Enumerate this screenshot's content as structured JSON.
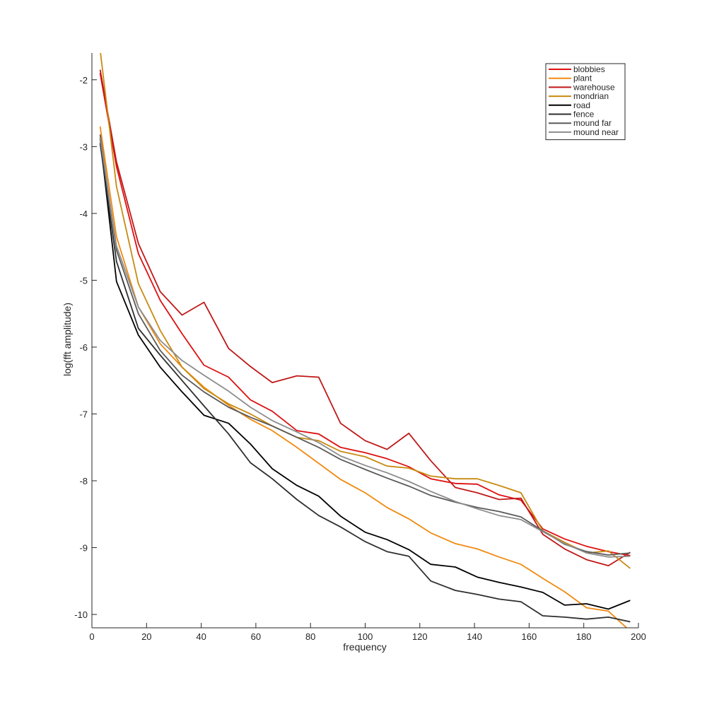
{
  "chart_data": {
    "type": "line",
    "title": "",
    "xlabel": "frequency",
    "ylabel": "log(fft amplitude)",
    "xlim": [
      0,
      200
    ],
    "ylim": [
      -10.2,
      -1.6
    ],
    "xticks": [
      0,
      20,
      40,
      60,
      80,
      100,
      120,
      140,
      160,
      180,
      200
    ],
    "yticks": [
      -10,
      -9,
      -8,
      -7,
      -6,
      -5,
      -4,
      -3,
      -2
    ],
    "grid": false,
    "legend_position": "top-right",
    "x": [
      3,
      9,
      17,
      25,
      33,
      41,
      50,
      58,
      66,
      75,
      83,
      91,
      100,
      108,
      116,
      124,
      133,
      141,
      149,
      157,
      165,
      173,
      181,
      189,
      197
    ],
    "series": [
      {
        "name": "blobbies",
        "color": "#dd1111",
        "values": [
          -1.9,
          -3.3,
          -4.6,
          -5.3,
          -5.8,
          -6.27,
          -6.45,
          -6.79,
          -6.96,
          -7.25,
          -7.3,
          -7.5,
          -7.58,
          -7.67,
          -7.79,
          -7.97,
          -8.04,
          -8.05,
          -8.21,
          -8.29,
          -8.72,
          -8.87,
          -8.98,
          -9.06,
          -9.12
        ]
      },
      {
        "name": "plant",
        "color": "#f08a10",
        "values": [
          -2.7,
          -4.35,
          -5.4,
          -5.95,
          -6.3,
          -6.6,
          -6.87,
          -7.08,
          -7.25,
          -7.5,
          -7.74,
          -7.98,
          -8.18,
          -8.4,
          -8.57,
          -8.78,
          -8.94,
          -9.02,
          -9.14,
          -9.25,
          -9.46,
          -9.66,
          -9.9,
          -9.95,
          -10.25
        ]
      },
      {
        "name": "warehouse",
        "color": "#c01818",
        "values": [
          -1.85,
          -3.23,
          -4.45,
          -5.17,
          -5.52,
          -5.33,
          -6.02,
          -6.29,
          -6.53,
          -6.43,
          -6.45,
          -7.14,
          -7.4,
          -7.53,
          -7.29,
          -7.7,
          -8.1,
          -8.18,
          -8.28,
          -8.26,
          -8.8,
          -9.02,
          -9.18,
          -9.27,
          -9.07
        ]
      },
      {
        "name": "mondrian",
        "color": "#c88a10",
        "values": [
          -1.55,
          -3.6,
          -5.05,
          -5.75,
          -6.3,
          -6.62,
          -6.85,
          -7.0,
          -7.18,
          -7.35,
          -7.4,
          -7.56,
          -7.64,
          -7.78,
          -7.81,
          -7.93,
          -7.97,
          -7.97,
          -8.07,
          -8.18,
          -8.75,
          -8.92,
          -9.08,
          -9.05,
          -9.31
        ]
      },
      {
        "name": "road",
        "color": "#000000",
        "values": [
          -2.88,
          -5.02,
          -5.82,
          -6.3,
          -6.67,
          -7.02,
          -7.14,
          -7.45,
          -7.82,
          -8.07,
          -8.23,
          -8.53,
          -8.77,
          -8.88,
          -9.03,
          -9.25,
          -9.29,
          -9.44,
          -9.52,
          -9.59,
          -9.67,
          -9.86,
          -9.84,
          -9.92,
          -9.79
        ]
      },
      {
        "name": "fence",
        "color": "#2e2e2e",
        "values": [
          -2.95,
          -4.72,
          -5.72,
          -6.12,
          -6.5,
          -6.88,
          -7.3,
          -7.73,
          -7.97,
          -8.28,
          -8.52,
          -8.69,
          -8.91,
          -9.06,
          -9.13,
          -9.5,
          -9.64,
          -9.7,
          -9.77,
          -9.81,
          -10.02,
          -10.04,
          -10.07,
          -10.04,
          -10.11
        ]
      },
      {
        "name": "mound far",
        "color": "#5a5a5a",
        "values": [
          -2.82,
          -4.55,
          -5.5,
          -6.05,
          -6.42,
          -6.67,
          -6.9,
          -7.05,
          -7.18,
          -7.35,
          -7.5,
          -7.68,
          -7.83,
          -7.96,
          -8.08,
          -8.22,
          -8.32,
          -8.4,
          -8.46,
          -8.54,
          -8.75,
          -8.95,
          -9.06,
          -9.11,
          -9.08
        ]
      },
      {
        "name": "mound near",
        "color": "#8c8c8c",
        "values": [
          -2.87,
          -4.49,
          -5.4,
          -5.9,
          -6.2,
          -6.42,
          -6.66,
          -6.9,
          -7.1,
          -7.27,
          -7.43,
          -7.63,
          -7.77,
          -7.88,
          -8.01,
          -8.16,
          -8.31,
          -8.42,
          -8.52,
          -8.58,
          -8.76,
          -8.94,
          -9.08,
          -9.14,
          -9.13
        ]
      }
    ]
  }
}
